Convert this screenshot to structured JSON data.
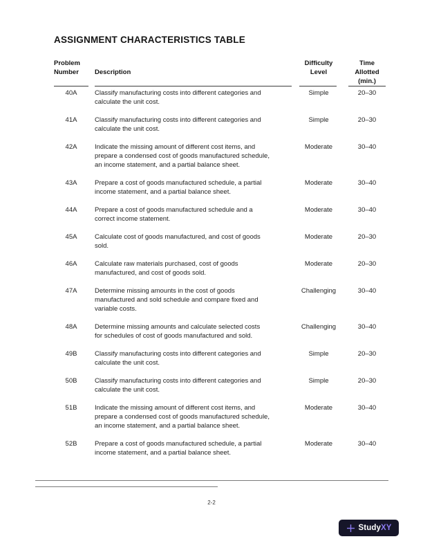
{
  "page": {
    "title": "ASSIGNMENT CHARACTERISTICS TABLE"
  },
  "table": {
    "headers": {
      "problem": "Problem\nNumber",
      "description": "Description",
      "difficulty": "Difficulty\nLevel",
      "time": "Time\nAllotted\n(min.)"
    },
    "rows": [
      {
        "problem": "40A",
        "description": "Classify manufacturing costs into different categories and\ncalculate the unit cost.",
        "difficulty": "Simple",
        "time": "20–30"
      },
      {
        "problem": "41A",
        "description": "Classify manufacturing costs into different categories and\ncalculate the unit cost.",
        "difficulty": "Simple",
        "time": "20–30"
      },
      {
        "problem": "42A",
        "description": "Indicate the missing amount of different cost items, and\nprepare a condensed cost of goods manufactured schedule,\nan income statement, and a partial balance sheet.",
        "difficulty": "Moderate",
        "time": "30–40"
      },
      {
        "problem": "43A",
        "description": "Prepare a cost of goods manufactured schedule, a partial\nincome statement, and a partial balance sheet.",
        "difficulty": "Moderate",
        "time": "30–40"
      },
      {
        "problem": "44A",
        "description": "Prepare a cost of goods manufactured schedule and a\ncorrect income statement.",
        "difficulty": "Moderate",
        "time": "30–40"
      },
      {
        "problem": "45A",
        "description": "Calculate cost of goods manufactured, and cost of goods\nsold.",
        "difficulty": "Moderate",
        "time": "20–30"
      },
      {
        "problem": "46A",
        "description": "Calculate raw materials purchased, cost of goods\nmanufactured, and cost of goods sold.",
        "difficulty": "Moderate",
        "time": "20–30"
      },
      {
        "problem": "47A",
        "description": "Determine missing amounts in the cost of goods\nmanufactured and sold schedule and compare fixed and\nvariable costs.",
        "difficulty": "Challenging",
        "time": "30–40"
      },
      {
        "problem": "48A",
        "description": "Determine missing amounts and calculate selected costs\nfor schedules of cost of goods manufactured and sold.",
        "difficulty": "Challenging",
        "time": "30–40"
      },
      {
        "problem": "49B",
        "description": "Classify manufacturing costs into different categories and\ncalculate the unit cost.",
        "difficulty": "Simple",
        "time": "20–30"
      },
      {
        "problem": "50B",
        "description": "Classify manufacturing costs into different categories and\ncalculate the unit cost.",
        "difficulty": "Simple",
        "time": "20–30"
      },
      {
        "problem": "51B",
        "description": "Indicate the missing amount of different cost items, and\nprepare a condensed cost of goods manufactured schedule,\nan income statement, and a partial balance sheet.",
        "difficulty": "Moderate",
        "time": "30–40"
      },
      {
        "problem": "52B",
        "description": "Prepare a cost of goods manufactured schedule, a partial\nincome statement, and a partial balance sheet.",
        "difficulty": "Moderate",
        "time": "30–40"
      }
    ]
  },
  "footer": {
    "page_number": "2-2",
    "logo": {
      "study": "Study",
      "xy": "XY",
      "plus_icon": "plus"
    }
  },
  "colors": {
    "text": "#1f1f1f",
    "table_rule": "#3b3b3b",
    "footer_line": "#7a7a7a",
    "logo_background": "#161629",
    "logo_accent_purple": "#8b7af0",
    "logo_text_white": "#ffffff"
  }
}
